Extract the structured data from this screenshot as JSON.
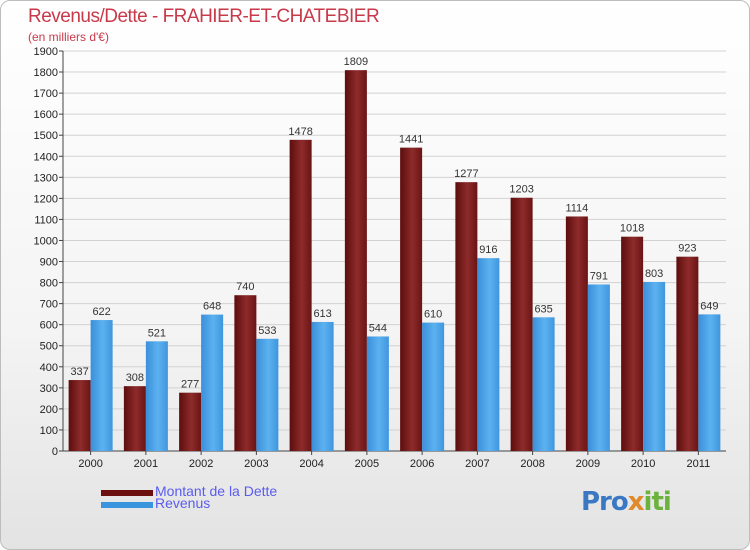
{
  "title": "Revenus/Dette - FRAHIER-ET-CHATEBIER",
  "subtitle": "(en milliers d'€)",
  "chart_data": {
    "type": "bar",
    "title": "Revenus/Dette - FRAHIER-ET-CHATEBIER",
    "ylabel": "(en milliers d'€)",
    "xlabel": "",
    "ylim": [
      0,
      1900
    ],
    "ytick_step": 100,
    "grid": true,
    "categories": [
      "2000",
      "2001",
      "2002",
      "2003",
      "2004",
      "2005",
      "2006",
      "2007",
      "2008",
      "2009",
      "2010",
      "2011"
    ],
    "series": [
      {
        "name": "Montant de la Dette",
        "color": "#7a1f1f",
        "values": [
          337,
          308,
          277,
          740,
          1478,
          1809,
          1441,
          1277,
          1203,
          1114,
          1018,
          923
        ]
      },
      {
        "name": "Revenus",
        "color": "#4aa3e8",
        "values": [
          622,
          521,
          648,
          533,
          613,
          544,
          610,
          916,
          635,
          791,
          803,
          649
        ]
      }
    ]
  },
  "legend": {
    "items": [
      {
        "label": "Montant de la Dette",
        "color": "#6b0f0f"
      },
      {
        "label": "Revenus",
        "color": "#3b95de"
      }
    ]
  },
  "logo": {
    "p1": "Pro",
    "p2": "x",
    "p3": "iti"
  }
}
